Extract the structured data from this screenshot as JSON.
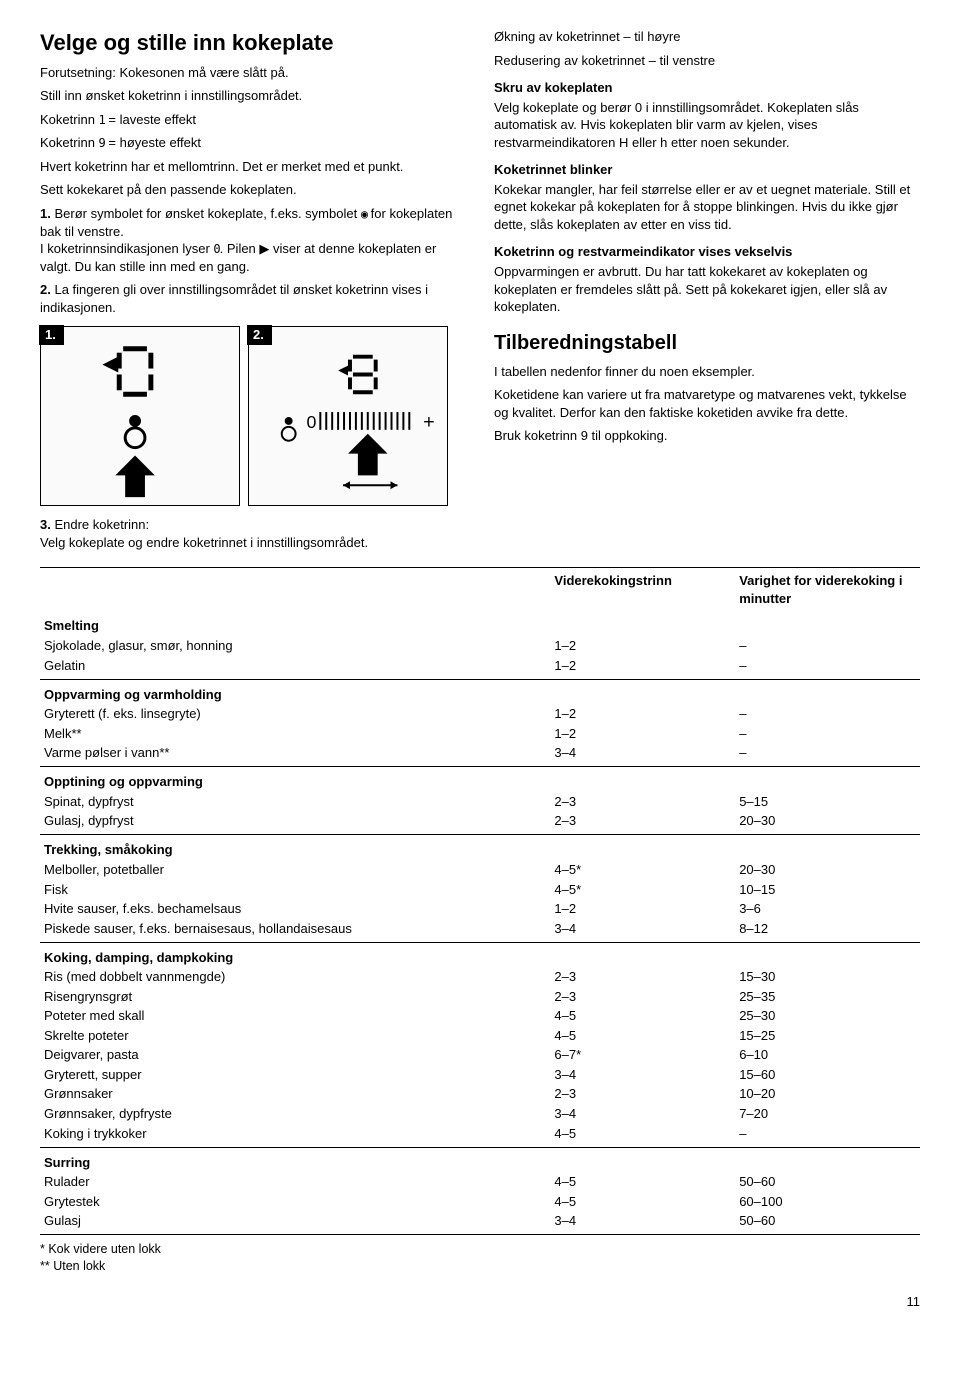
{
  "page_number": "11",
  "left": {
    "h1": "Velge og stille inn kokeplate",
    "p1": "Forutsetning: Kokesonen må være slått på.",
    "p2": "Still inn ønsket koketrinn i innstillingsområdet.",
    "p3a": "Koketrinn ",
    "p3b": " = laveste effekt",
    "p4a": "Koketrinn ",
    "p4b": " = høyeste effekt",
    "p5": "Hvert koketrinn har et mellomtrinn. Det er merket med et punkt.",
    "p6": "Sett kokekaret på den passende kokeplaten.",
    "li1_num": "1.",
    "li1a": "Berør symbolet for ønsket kokeplate, f.eks. symbolet ",
    "li1b": " for kokeplaten bak til venstre.",
    "li1c": "I koketrinnsindikasjonen lyser ",
    "li1d": ". Pilen ▶ viser at denne kokeplaten er valgt. Du kan stille inn med en gang.",
    "li2_num": "2.",
    "li2": "La fingeren gli over innstillingsområdet til ønsket koketrinn vises i indikasjonen.",
    "fig1_label": "1.",
    "fig2_label": "2.",
    "li3_num": "3.",
    "li3": "Endre koketrinn:\nVelg kokeplate og endre koketrinnet i innstillingsområdet."
  },
  "right": {
    "p1": "Økning av koketrinnet – til høyre",
    "p2": "Redusering av koketrinnet – til venstre",
    "h3a": "Skru av kokeplaten",
    "p3": "Velg kokeplate og berør 0 i innstillingsområdet. Kokeplaten slås automatisk av. Hvis kokeplaten blir varm av kjelen, vises restvarmeindikatoren H eller h etter noen sekunder.",
    "h3b": "Koketrinnet blinker",
    "p4": "Kokekar mangler, har feil størrelse eller er av et uegnet materiale. Still et egnet kokekar på kokeplaten for å stoppe blinkingen. Hvis du ikke gjør dette, slås kokeplaten av etter en viss tid.",
    "h3c": "Koketrinn og restvarmeindikator vises vekselvis",
    "p5": "Oppvarmingen er avbrutt. Du har tatt kokekaret av kokeplaten og kokeplaten er fremdeles slått på. Sett på kokekaret igjen, eller slå av kokeplaten.",
    "h2": "Tilberedningstabell",
    "p6": "I tabellen nedenfor finner du noen eksempler.",
    "p7": "Koketidene kan variere ut fra matvaretype og matvarenes vekt, tykkelse og kvalitet. Derfor kan den faktiske koketiden avvike fra dette.",
    "p8": "Bruk koketrinn 9 til oppkoking."
  },
  "glyphs": {
    "one": "1",
    "nine": "9",
    "zero": "0",
    "burner": "◉"
  },
  "table": {
    "head_lvl": "Viderekokingstrinn",
    "head_dur": "Varighet for viderekoking i minutter",
    "groups": [
      {
        "title": "Smelting",
        "rows": [
          {
            "food": "Sjokolade, glasur, smør, honning",
            "lvl": "1–2",
            "dur": "–"
          },
          {
            "food": "Gelatin",
            "lvl": "1–2",
            "dur": "–"
          }
        ]
      },
      {
        "title": "Oppvarming og varmholding",
        "rows": [
          {
            "food": "Gryterett (f. eks. linsegryte)",
            "lvl": "1–2",
            "dur": "–"
          },
          {
            "food": "Melk**",
            "lvl": "1–2",
            "dur": "–"
          },
          {
            "food": "Varme pølser i vann**",
            "lvl": "3–4",
            "dur": "–"
          }
        ]
      },
      {
        "title": "Opptining og oppvarming",
        "rows": [
          {
            "food": "Spinat, dypfryst",
            "lvl": "2–3",
            "dur": "5–15"
          },
          {
            "food": "Gulasj, dypfryst",
            "lvl": "2–3",
            "dur": "20–30"
          }
        ]
      },
      {
        "title": "Trekking, småkoking",
        "rows": [
          {
            "food": "Melboller, potetballer",
            "lvl": "4–5*",
            "dur": "20–30"
          },
          {
            "food": "Fisk",
            "lvl": "4–5*",
            "dur": "10–15"
          },
          {
            "food": "Hvite sauser, f.eks. bechamelsaus",
            "lvl": "1–2",
            "dur": "3–6"
          },
          {
            "food": "Piskede sauser, f.eks. bernaisesaus, hollandaisesaus",
            "lvl": "3–4",
            "dur": "8–12"
          }
        ]
      },
      {
        "title": "Koking, damping, dampkoking",
        "rows": [
          {
            "food": "Ris (med dobbelt vannmengde)",
            "lvl": "2–3",
            "dur": "15–30"
          },
          {
            "food": "Risengrynsgrøt",
            "lvl": "2–3",
            "dur": "25–35"
          },
          {
            "food": "Poteter med skall",
            "lvl": "4–5",
            "dur": "25–30"
          },
          {
            "food": "Skrelte poteter",
            "lvl": "4–5",
            "dur": "15–25"
          },
          {
            "food": "Deigvarer, pasta",
            "lvl": "6–7*",
            "dur": "6–10"
          },
          {
            "food": "Gryterett, supper",
            "lvl": "3–4",
            "dur": "15–60"
          },
          {
            "food": "Grønnsaker",
            "lvl": "2–3",
            "dur": "10–20"
          },
          {
            "food": "Grønnsaker, dypfryste",
            "lvl": "3–4",
            "dur": "7–20"
          },
          {
            "food": "Koking i trykkoker",
            "lvl": "4–5",
            "dur": "–"
          }
        ]
      },
      {
        "title": "Surring",
        "rows": [
          {
            "food": "Rulader",
            "lvl": "4–5",
            "dur": "50–60"
          },
          {
            "food": "Grytestek",
            "lvl": "4–5",
            "dur": "60–100"
          },
          {
            "food": "Gulasj",
            "lvl": "3–4",
            "dur": "50–60"
          }
        ]
      }
    ],
    "footnote1": "* Kok videre uten lokk",
    "footnote2": "** Uten lokk"
  }
}
